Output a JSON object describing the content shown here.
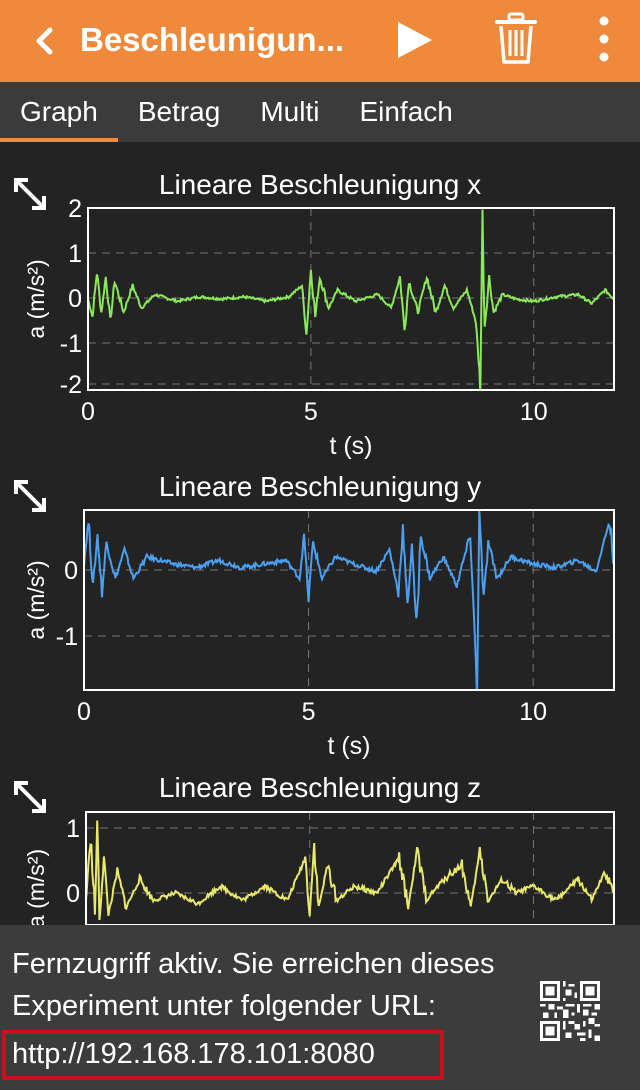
{
  "header": {
    "title": "Beschleunigun...",
    "back_icon": "chevron-left-icon",
    "play_icon": "play-icon",
    "delete_icon": "trash-icon",
    "more_icon": "more-vertical-icon",
    "background_color": "#ef8a3d"
  },
  "tabs": [
    {
      "label": "Graph",
      "active": true
    },
    {
      "label": "Betrag",
      "active": false
    },
    {
      "label": "Multi",
      "active": false
    },
    {
      "label": "Einfach",
      "active": false
    }
  ],
  "chart_data": [
    {
      "type": "line",
      "title": "Lineare Beschleunigung x",
      "xlabel": "t (s)",
      "ylabel": "a (m/s²)",
      "color": "#8be85a",
      "xlim": [
        0,
        11.8
      ],
      "ylim": [
        -2.05,
        2.05
      ],
      "xticks": [
        "0",
        "5",
        "10"
      ],
      "yticks": [
        "2",
        "1",
        "0",
        "-1",
        "-2"
      ],
      "points": [
        [
          0,
          0.0
        ],
        [
          0.1,
          -0.4
        ],
        [
          0.2,
          0.6
        ],
        [
          0.3,
          -0.3
        ],
        [
          0.4,
          0.5
        ],
        [
          0.5,
          -0.5
        ],
        [
          0.6,
          0.4
        ],
        [
          0.8,
          -0.3
        ],
        [
          1.0,
          0.3
        ],
        [
          1.2,
          -0.2
        ],
        [
          1.5,
          0.1
        ],
        [
          2.0,
          -0.05
        ],
        [
          2.5,
          0.05
        ],
        [
          3.0,
          0.0
        ],
        [
          3.5,
          0.05
        ],
        [
          4.0,
          -0.05
        ],
        [
          4.5,
          0.05
        ],
        [
          4.8,
          0.3
        ],
        [
          4.9,
          -0.8
        ],
        [
          5.0,
          0.7
        ],
        [
          5.1,
          -0.4
        ],
        [
          5.2,
          0.5
        ],
        [
          5.4,
          -0.2
        ],
        [
          5.6,
          0.2
        ],
        [
          6.0,
          -0.05
        ],
        [
          6.5,
          0.1
        ],
        [
          6.8,
          -0.2
        ],
        [
          7.0,
          0.5
        ],
        [
          7.1,
          -0.7
        ],
        [
          7.2,
          0.4
        ],
        [
          7.4,
          -0.3
        ],
        [
          7.6,
          0.5
        ],
        [
          7.8,
          -0.3
        ],
        [
          8.0,
          0.3
        ],
        [
          8.2,
          -0.2
        ],
        [
          8.5,
          0.2
        ],
        [
          8.7,
          -0.5
        ],
        [
          8.8,
          -1.9
        ],
        [
          8.85,
          1.85
        ],
        [
          8.9,
          -0.6
        ],
        [
          9.0,
          0.5
        ],
        [
          9.1,
          -0.3
        ],
        [
          9.3,
          0.1
        ],
        [
          9.6,
          0.0
        ],
        [
          10.0,
          -0.05
        ],
        [
          10.5,
          0.05
        ],
        [
          11.0,
          0.1
        ],
        [
          11.3,
          -0.1
        ],
        [
          11.6,
          0.2
        ],
        [
          11.8,
          0.0
        ]
      ]
    },
    {
      "type": "line",
      "title": "Lineare Beschleunigung y",
      "xlabel": "t (s)",
      "ylabel": "a (m/s²)",
      "color": "#4a9ff0",
      "xlim": [
        0,
        11.8
      ],
      "ylim": [
        -1.75,
        0.75
      ],
      "xticks": [
        "0",
        "5",
        "10"
      ],
      "yticks": [
        "0",
        "-1"
      ],
      "points": [
        [
          0,
          0.0
        ],
        [
          0.1,
          0.6
        ],
        [
          0.2,
          -0.3
        ],
        [
          0.3,
          0.4
        ],
        [
          0.4,
          -0.4
        ],
        [
          0.5,
          0.3
        ],
        [
          0.7,
          -0.2
        ],
        [
          0.9,
          0.2
        ],
        [
          1.1,
          -0.2
        ],
        [
          1.4,
          0.1
        ],
        [
          2.0,
          0.0
        ],
        [
          2.5,
          -0.05
        ],
        [
          3.0,
          0.05
        ],
        [
          3.5,
          -0.05
        ],
        [
          4.0,
          0.0
        ],
        [
          4.5,
          0.05
        ],
        [
          4.8,
          -0.2
        ],
        [
          4.9,
          0.4
        ],
        [
          5.0,
          -0.5
        ],
        [
          5.1,
          0.3
        ],
        [
          5.3,
          -0.2
        ],
        [
          5.6,
          0.1
        ],
        [
          6.0,
          0.0
        ],
        [
          6.5,
          -0.1
        ],
        [
          6.8,
          0.2
        ],
        [
          7.0,
          -0.4
        ],
        [
          7.1,
          0.5
        ],
        [
          7.2,
          -0.6
        ],
        [
          7.3,
          0.3
        ],
        [
          7.4,
          -0.9
        ],
        [
          7.5,
          0.4
        ],
        [
          7.7,
          -0.2
        ],
        [
          8.0,
          0.1
        ],
        [
          8.3,
          -0.3
        ],
        [
          8.6,
          0.4
        ],
        [
          8.75,
          -1.7
        ],
        [
          8.8,
          0.7
        ],
        [
          8.9,
          -0.5
        ],
        [
          9.0,
          0.3
        ],
        [
          9.2,
          -0.2
        ],
        [
          9.5,
          0.1
        ],
        [
          10.0,
          0.0
        ],
        [
          10.5,
          -0.05
        ],
        [
          11.0,
          0.05
        ],
        [
          11.4,
          -0.1
        ],
        [
          11.7,
          0.6
        ],
        [
          11.8,
          0.0
        ]
      ]
    },
    {
      "type": "line",
      "title": "Lineare Beschleunigung z",
      "ylabel": "a (m/s²)",
      "color": "#e8e86a",
      "xlim": [
        0,
        11.8
      ],
      "ylim": [
        -0.35,
        1.25
      ],
      "yticks": [
        "1",
        "0"
      ],
      "points": [
        [
          0,
          0.0
        ],
        [
          0.1,
          0.9
        ],
        [
          0.2,
          -0.2
        ],
        [
          0.25,
          1.1
        ],
        [
          0.3,
          -0.3
        ],
        [
          0.4,
          0.6
        ],
        [
          0.5,
          -0.2
        ],
        [
          0.7,
          0.4
        ],
        [
          0.9,
          -0.1
        ],
        [
          1.2,
          0.3
        ],
        [
          1.5,
          0.0
        ],
        [
          2.0,
          0.1
        ],
        [
          2.5,
          -0.05
        ],
        [
          3.0,
          0.2
        ],
        [
          3.5,
          0.0
        ],
        [
          4.0,
          0.2
        ],
        [
          4.5,
          0.0
        ],
        [
          4.9,
          0.6
        ],
        [
          5.0,
          -0.2
        ],
        [
          5.1,
          0.8
        ],
        [
          5.2,
          -0.1
        ],
        [
          5.4,
          0.5
        ],
        [
          5.6,
          0.0
        ],
        [
          6.0,
          0.2
        ],
        [
          6.5,
          0.1
        ],
        [
          7.0,
          0.6
        ],
        [
          7.2,
          -0.1
        ],
        [
          7.4,
          0.7
        ],
        [
          7.6,
          0.0
        ],
        [
          8.0,
          0.3
        ],
        [
          8.4,
          0.5
        ],
        [
          8.6,
          -0.1
        ],
        [
          8.8,
          0.7
        ],
        [
          9.0,
          0.0
        ],
        [
          9.3,
          0.3
        ],
        [
          9.6,
          0.1
        ],
        [
          10.0,
          0.2
        ],
        [
          10.5,
          0.0
        ],
        [
          11.0,
          0.3
        ],
        [
          11.3,
          0.0
        ],
        [
          11.6,
          0.4
        ],
        [
          11.8,
          0.1
        ]
      ]
    }
  ],
  "remote": {
    "message": "Fernzugriff aktiv. Sie erreichen dieses Experiment unter folgender URL:",
    "url": "http://192.168.178.101:8080",
    "qr_icon": "qr-code-icon",
    "highlight_color": "#c9111c"
  }
}
